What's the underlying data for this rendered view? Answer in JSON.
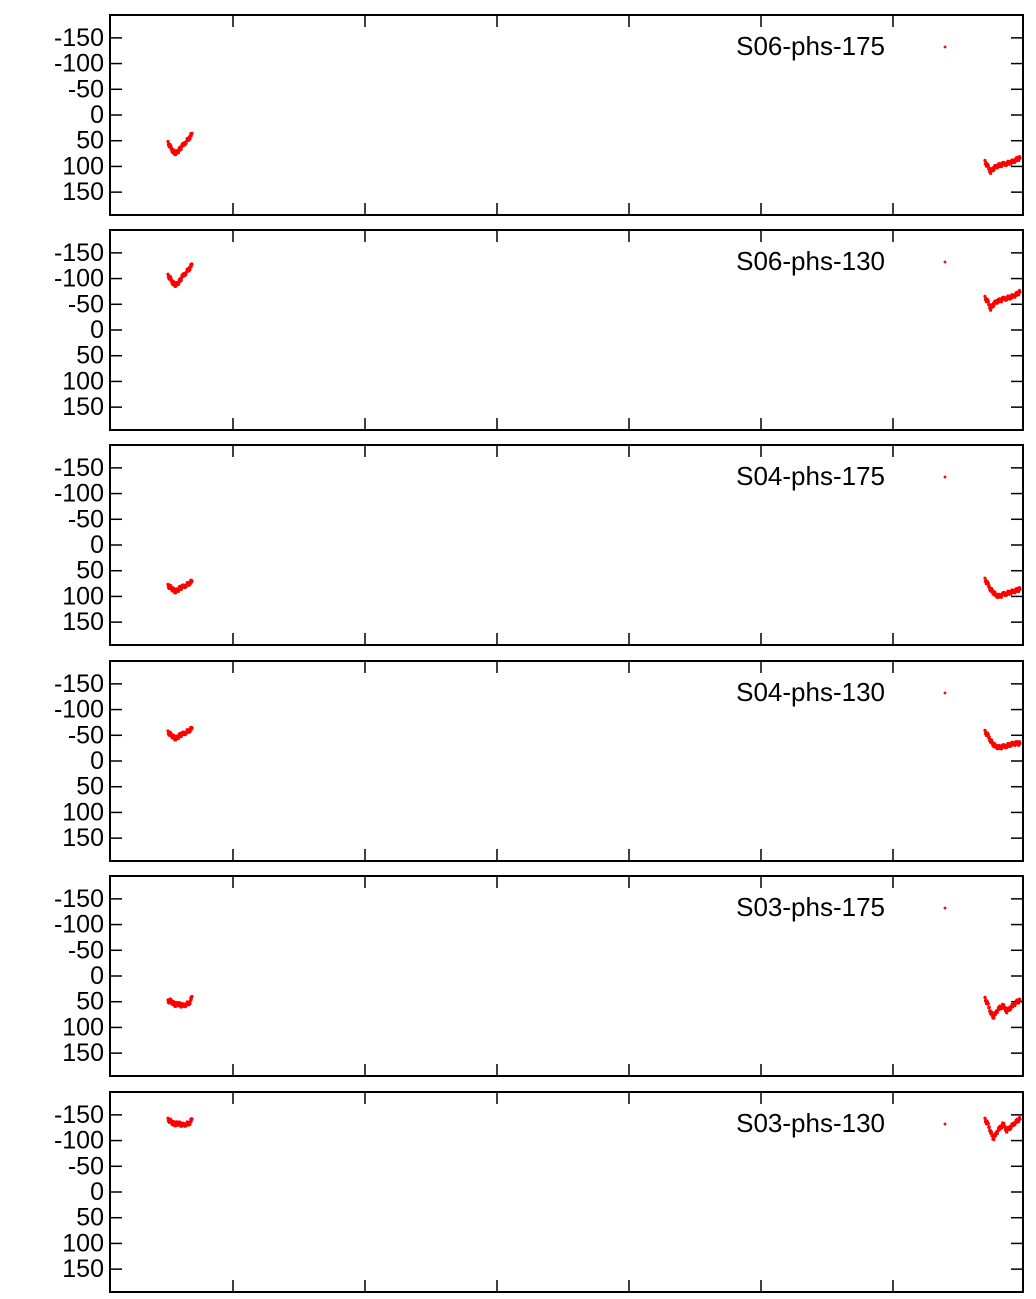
{
  "colors": {
    "series": "#ff0000",
    "axis": "#000000"
  },
  "chart_data": [
    {
      "type": "scatter",
      "series_name": "S06-phs-175",
      "ylim": [
        -175,
        175
      ],
      "y_inverted": true,
      "yticks": [
        -150,
        -100,
        -50,
        0,
        50,
        100,
        150
      ],
      "grid": false,
      "legend_position": "top-right",
      "series": [
        {
          "name": "S06-phs-175",
          "clusters": [
            [
              [
                0.0,
                55
              ],
              [
                0.1,
                62
              ],
              [
                0.2,
                70
              ],
              [
                0.3,
                74
              ],
              [
                0.4,
                72
              ],
              [
                0.5,
                66
              ],
              [
                0.6,
                60
              ],
              [
                0.75,
                52
              ],
              [
                0.9,
                44
              ],
              [
                1.0,
                36
              ]
            ],
            [
              [
                0.0,
                92
              ],
              [
                0.08,
                100
              ],
              [
                0.16,
                110
              ],
              [
                0.24,
                104
              ],
              [
                0.32,
                100
              ],
              [
                0.42,
                98
              ],
              [
                0.52,
                96
              ],
              [
                0.62,
                94
              ],
              [
                0.72,
                92
              ],
              [
                0.82,
                90
              ],
              [
                0.92,
                86
              ],
              [
                1.0,
                84
              ]
            ]
          ]
        }
      ]
    },
    {
      "type": "scatter",
      "series_name": "S06-phs-130",
      "ylim": [
        -175,
        175
      ],
      "y_inverted": true,
      "yticks": [
        -150,
        -100,
        -50,
        0,
        50,
        100,
        150
      ],
      "grid": false,
      "legend_position": "top-right",
      "series": [
        {
          "name": "S06-phs-130",
          "clusters": [
            [
              [
                0.0,
                -105
              ],
              [
                0.1,
                -100
              ],
              [
                0.2,
                -92
              ],
              [
                0.3,
                -88
              ],
              [
                0.4,
                -90
              ],
              [
                0.5,
                -96
              ],
              [
                0.6,
                -104
              ],
              [
                0.75,
                -112
              ],
              [
                0.9,
                -120
              ],
              [
                1.0,
                -128
              ]
            ],
            [
              [
                0.0,
                -62
              ],
              [
                0.08,
                -55
              ],
              [
                0.16,
                -42
              ],
              [
                0.24,
                -50
              ],
              [
                0.32,
                -55
              ],
              [
                0.42,
                -57
              ],
              [
                0.52,
                -60
              ],
              [
                0.62,
                -62
              ],
              [
                0.72,
                -64
              ],
              [
                0.82,
                -66
              ],
              [
                0.92,
                -70
              ],
              [
                1.0,
                -74
              ]
            ]
          ]
        }
      ]
    },
    {
      "type": "scatter",
      "series_name": "S04-phs-175",
      "ylim": [
        -175,
        175
      ],
      "y_inverted": true,
      "yticks": [
        -150,
        -100,
        -50,
        0,
        50,
        100,
        150
      ],
      "grid": false,
      "legend_position": "top-right",
      "series": [
        {
          "name": "S04-phs-175",
          "clusters": [
            [
              [
                0.0,
                80
              ],
              [
                0.1,
                82
              ],
              [
                0.2,
                86
              ],
              [
                0.3,
                90
              ],
              [
                0.4,
                88
              ],
              [
                0.5,
                84
              ],
              [
                0.6,
                82
              ],
              [
                0.75,
                78
              ],
              [
                0.9,
                74
              ],
              [
                1.0,
                70
              ]
            ],
            [
              [
                0.0,
                68
              ],
              [
                0.08,
                76
              ],
              [
                0.16,
                86
              ],
              [
                0.24,
                92
              ],
              [
                0.32,
                98
              ],
              [
                0.42,
                100
              ],
              [
                0.52,
                96
              ],
              [
                0.62,
                94
              ],
              [
                0.72,
                92
              ],
              [
                0.82,
                90
              ],
              [
                0.92,
                88
              ],
              [
                1.0,
                86
              ]
            ]
          ]
        }
      ]
    },
    {
      "type": "scatter",
      "series_name": "S04-phs-130",
      "ylim": [
        -175,
        175
      ],
      "y_inverted": true,
      "yticks": [
        -150,
        -100,
        -50,
        0,
        50,
        100,
        150
      ],
      "grid": false,
      "legend_position": "top-right",
      "series": [
        {
          "name": "S04-phs-130",
          "clusters": [
            [
              [
                0.0,
                -55
              ],
              [
                0.1,
                -52
              ],
              [
                0.2,
                -48
              ],
              [
                0.3,
                -44
              ],
              [
                0.4,
                -46
              ],
              [
                0.5,
                -50
              ],
              [
                0.6,
                -52
              ],
              [
                0.75,
                -56
              ],
              [
                0.9,
                -60
              ],
              [
                1.0,
                -64
              ]
            ],
            [
              [
                0.0,
                -56
              ],
              [
                0.08,
                -50
              ],
              [
                0.16,
                -40
              ],
              [
                0.24,
                -32
              ],
              [
                0.32,
                -28
              ],
              [
                0.42,
                -26
              ],
              [
                0.52,
                -28
              ],
              [
                0.62,
                -30
              ],
              [
                0.72,
                -32
              ],
              [
                0.82,
                -34
              ],
              [
                0.92,
                -34
              ],
              [
                1.0,
                -34
              ]
            ]
          ]
        }
      ]
    },
    {
      "type": "scatter",
      "series_name": "S03-phs-175",
      "ylim": [
        -175,
        175
      ],
      "y_inverted": true,
      "yticks": [
        -150,
        -100,
        -50,
        0,
        50,
        100,
        150
      ],
      "grid": false,
      "legend_position": "top-right",
      "series": [
        {
          "name": "S03-phs-175",
          "clusters": [
            [
              [
                0.0,
                50
              ],
              [
                0.1,
                48
              ],
              [
                0.2,
                52
              ],
              [
                0.3,
                56
              ],
              [
                0.4,
                54
              ],
              [
                0.5,
                56
              ],
              [
                0.6,
                58
              ],
              [
                0.75,
                55
              ],
              [
                0.9,
                52
              ],
              [
                1.0,
                40
              ]
            ],
            [
              [
                0.0,
                45
              ],
              [
                0.08,
                55
              ],
              [
                0.16,
                70
              ],
              [
                0.24,
                80
              ],
              [
                0.32,
                70
              ],
              [
                0.42,
                62
              ],
              [
                0.52,
                58
              ],
              [
                0.62,
                68
              ],
              [
                0.72,
                62
              ],
              [
                0.82,
                56
              ],
              [
                0.92,
                50
              ],
              [
                1.0,
                48
              ]
            ]
          ]
        }
      ]
    },
    {
      "type": "scatter",
      "series_name": "S03-phs-130",
      "ylim": [
        -175,
        175
      ],
      "y_inverted": true,
      "yticks": [
        -150,
        -100,
        -50,
        0,
        50,
        100,
        150
      ],
      "grid": false,
      "legend_position": "top-right",
      "series": [
        {
          "name": "S03-phs-130",
          "clusters": [
            [
              [
                0.0,
                -140
              ],
              [
                0.1,
                -138
              ],
              [
                0.2,
                -134
              ],
              [
                0.3,
                -132
              ],
              [
                0.4,
                -134
              ],
              [
                0.5,
                -132
              ],
              [
                0.6,
                -130
              ],
              [
                0.75,
                -132
              ],
              [
                0.9,
                -134
              ],
              [
                1.0,
                -142
              ]
            ],
            [
              [
                0.0,
                -140
              ],
              [
                0.08,
                -132
              ],
              [
                0.16,
                -118
              ],
              [
                0.24,
                -104
              ],
              [
                0.32,
                -114
              ],
              [
                0.42,
                -124
              ],
              [
                0.52,
                -132
              ],
              [
                0.62,
                -120
              ],
              [
                0.72,
                -126
              ],
              [
                0.82,
                -132
              ],
              [
                0.92,
                -138
              ],
              [
                1.0,
                -142
              ]
            ]
          ]
        }
      ]
    }
  ]
}
